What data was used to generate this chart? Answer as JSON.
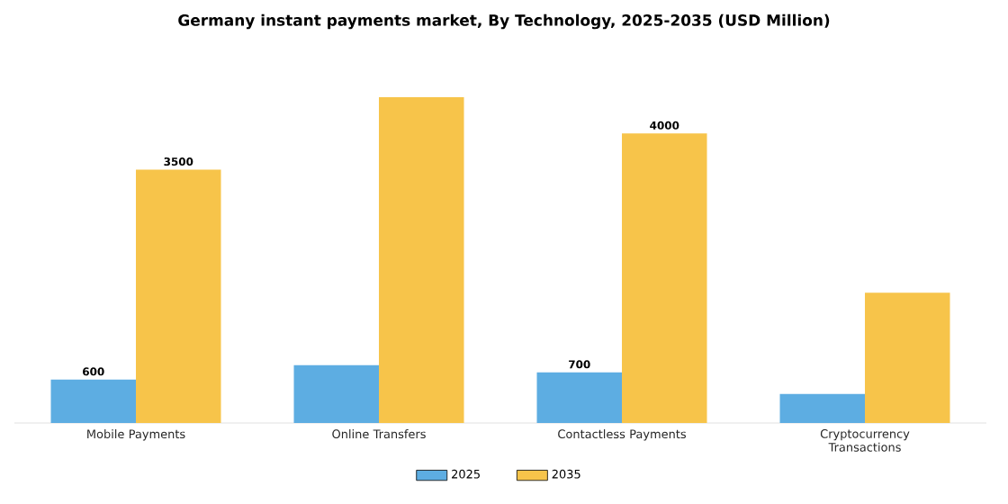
{
  "chart_data": {
    "type": "bar",
    "title": "Germany instant payments market, By Technology, 2025-2035 (USD Million)",
    "categories": [
      "Mobile Payments",
      "Online Transfers",
      "Contactless Payments",
      "Cryptocurrency Transactions"
    ],
    "series": [
      {
        "name": "2025",
        "color": "#5dade2",
        "values": [
          600,
          800,
          700,
          400
        ],
        "value_labels": [
          "600",
          null,
          "700",
          null
        ]
      },
      {
        "name": "2035",
        "color": "#f7c44a",
        "values": [
          3500,
          4500,
          4000,
          1800
        ],
        "value_labels": [
          "3500",
          null,
          "4000",
          null
        ]
      }
    ],
    "legend": "bottom"
  }
}
